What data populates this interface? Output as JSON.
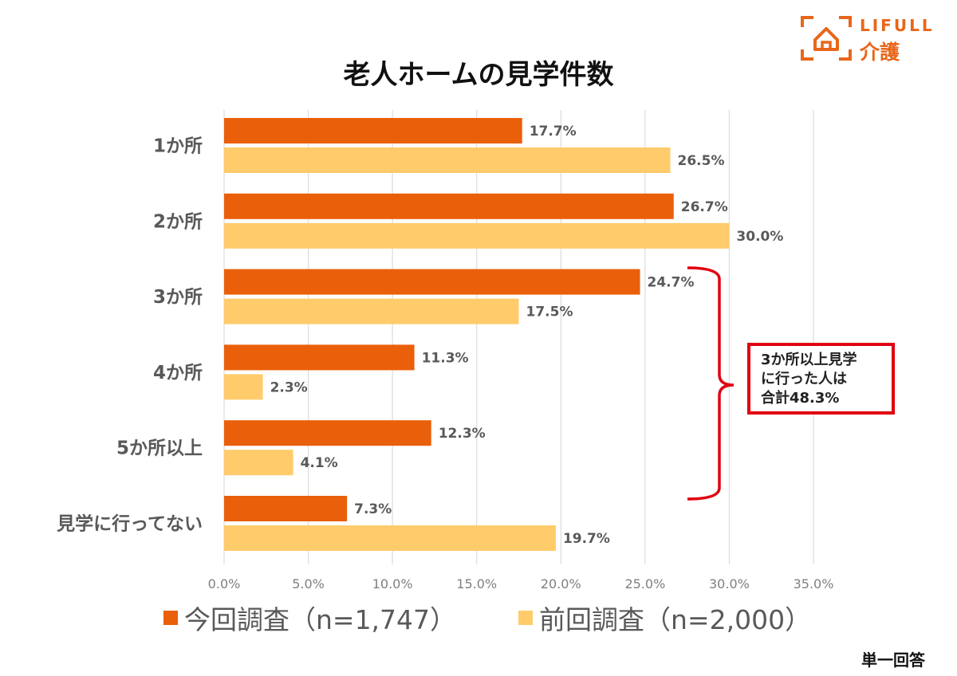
{
  "colors": {
    "current": "#ea5f0a",
    "previous": "#ffcb6b",
    "grid": "#dcdcdc",
    "brand": "#e8661a",
    "annotation": "#e00010",
    "category_text": "#595959",
    "value_text": "#595959"
  },
  "logo": {
    "brand": "LIFULL",
    "sub": "介護",
    "icon": "house-bracket-icon"
  },
  "response_note": "単一回答",
  "annotation": {
    "lines": [
      "3か所以上見学",
      "に行った人は",
      "合計48.3%"
    ]
  },
  "chart_data": {
    "type": "bar",
    "orientation": "horizontal",
    "title": "老人ホームの見学件数",
    "categories": [
      "1か所",
      "2か所",
      "3か所",
      "4か所",
      "5か所以上",
      "見学に行ってない"
    ],
    "series": [
      {
        "name": "今回調査（n=1,747）",
        "values": [
          17.7,
          26.7,
          24.7,
          11.3,
          12.3,
          7.3
        ],
        "labels": [
          "17.7%",
          "26.7%",
          "24.7%",
          "11.3%",
          "12.3%",
          "7.3%"
        ]
      },
      {
        "name": "前回調査（n=2,000）",
        "values": [
          26.5,
          30.0,
          17.5,
          2.3,
          4.1,
          19.7
        ],
        "labels": [
          "26.5%",
          "30.0%",
          "17.5%",
          "2.3%",
          "4.1%",
          "19.7%"
        ]
      }
    ],
    "xlim": [
      0,
      35
    ],
    "xticks": [
      0,
      5,
      10,
      15,
      20,
      25,
      30,
      35
    ],
    "xtick_labels": [
      "0.0%",
      "5.0%",
      "10.0%",
      "15.0%",
      "20.0%",
      "25.0%",
      "30.0%",
      "35.0%"
    ],
    "grid": true,
    "legend_position": "bottom"
  }
}
